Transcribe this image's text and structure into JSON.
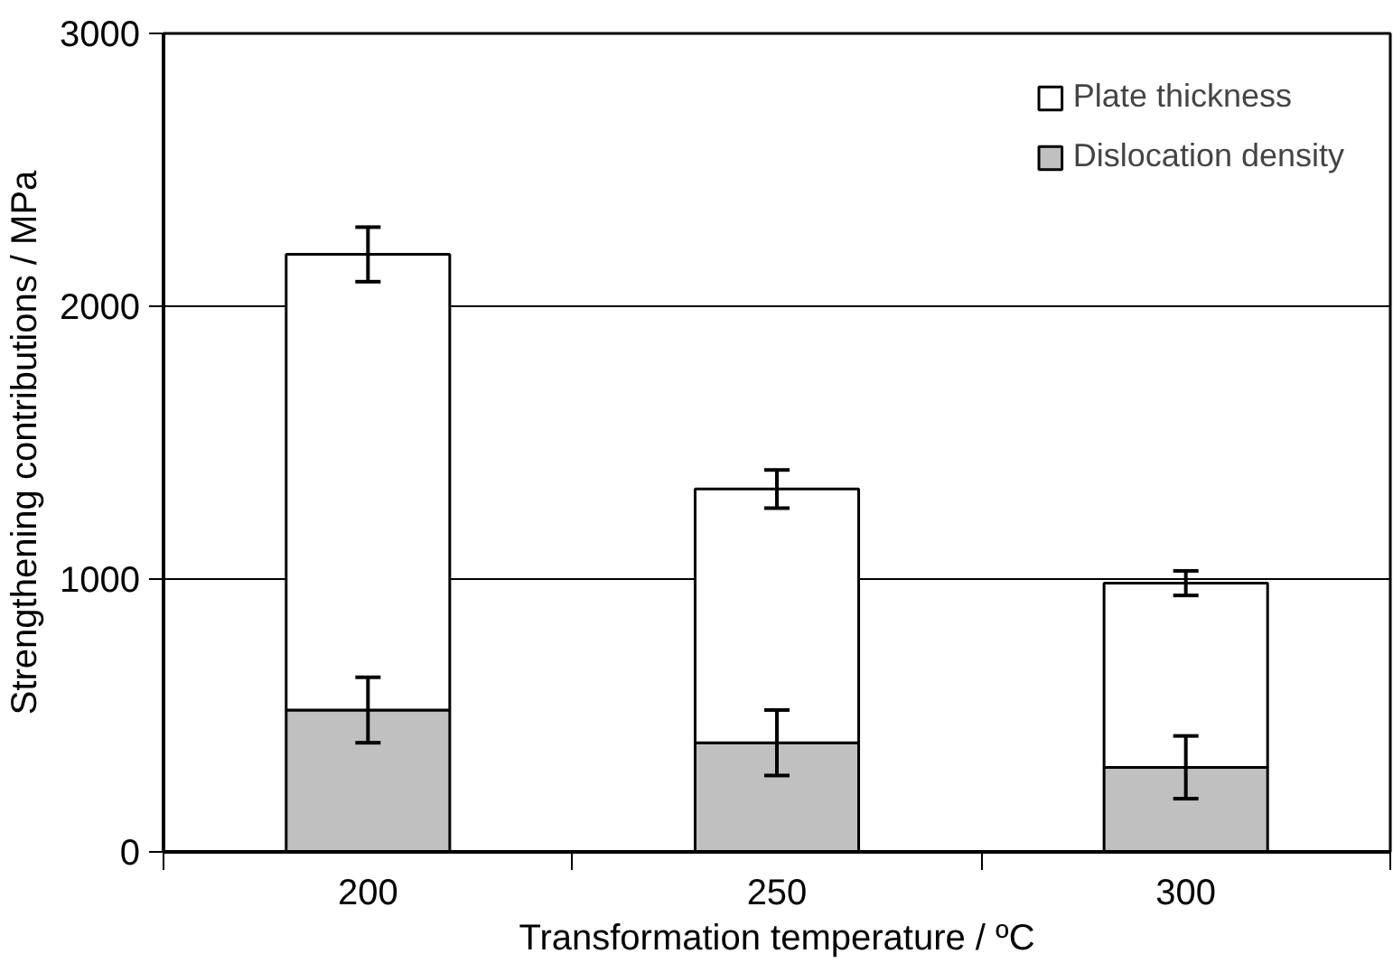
{
  "chart_data": {
    "type": "bar",
    "stacked": true,
    "xlabel": "Transformation temperature / ºC",
    "ylabel": "Strengthening contributions / MPa",
    "categories": [
      "200",
      "250",
      "300"
    ],
    "series": [
      {
        "name": "Dislocation density",
        "color": "#c0c0c0",
        "values": [
          520,
          400,
          310
        ],
        "errors": [
          120,
          120,
          115
        ]
      },
      {
        "name": "Plate thickness",
        "color": "#ffffff",
        "values": [
          1670,
          930,
          675
        ],
        "errors": [
          100,
          70,
          45
        ]
      }
    ],
    "ylim": [
      0,
      3000
    ],
    "yticks": [
      0,
      1000,
      2000,
      3000
    ],
    "grid": "y",
    "legend": "top right"
  }
}
